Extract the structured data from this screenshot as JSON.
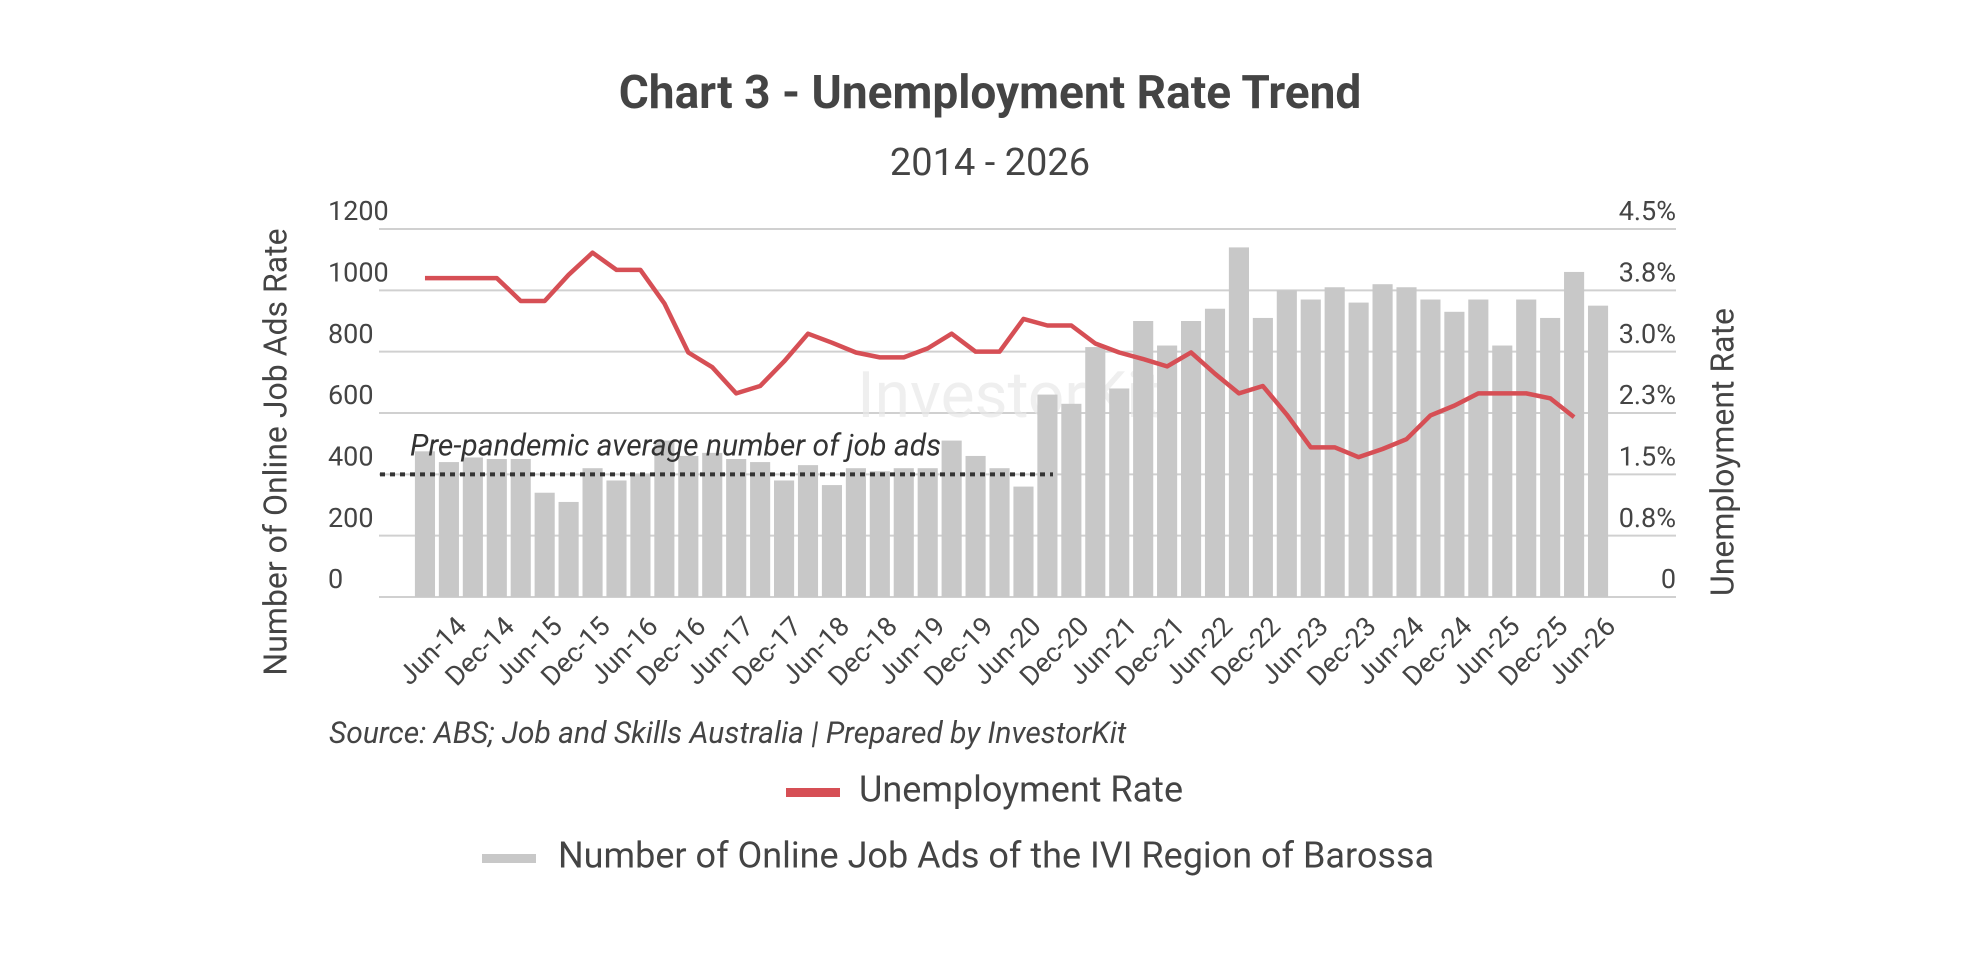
{
  "chart_data": {
    "type": "bar_line",
    "title": "Chart 3 - Unemployment Rate Trend",
    "subtitle": "2014 - 2026",
    "y_label": "Number of Online Job Ads Rate",
    "y2_label": "Unemployment Rate",
    "source": "Source: ABS; Job and Skills Australia | Prepared by InvestorKit",
    "watermark": "InvestorKit",
    "annotation": {
      "text": "Pre-pandemic average number of job ads",
      "value": 400
    },
    "categories": [
      null,
      "Jun-14",
      null,
      "Dec-14",
      null,
      "Jun-15",
      null,
      "Dec-15",
      null,
      "Jun-16",
      null,
      "Dec-16",
      null,
      "Jun-17",
      null,
      "Dec-17",
      null,
      "Jun-18",
      null,
      "Dec-18",
      null,
      "Jun-19",
      null,
      "Dec-19",
      null,
      "Jun-20",
      null,
      "Dec-20",
      null,
      "Jun-21",
      null,
      "Dec-21",
      null,
      "Jun-22",
      null,
      "Dec-22",
      null,
      "Jun-23",
      null,
      "Dec-23",
      null,
      "Jun-24",
      null,
      "Dec-24",
      null,
      "Jun-25",
      null,
      "Dec-25",
      null,
      "Jun-26"
    ],
    "series": [
      {
        "name": "Number of Online Job Ads of the IVI Region of Barossa",
        "type": "bar",
        "color": "#c8c8c8",
        "values": [
          475,
          440,
          455,
          450,
          450,
          340,
          310,
          420,
          380,
          400,
          510,
          460,
          470,
          450,
          440,
          380,
          430,
          365,
          420,
          410,
          420,
          420,
          510,
          460,
          420,
          360,
          660,
          630,
          815,
          680,
          900,
          820,
          900,
          940,
          1140,
          910,
          1000,
          970,
          1010,
          960,
          1020,
          1010,
          970,
          930,
          970,
          820,
          970,
          910,
          1060,
          950
        ]
      },
      {
        "name": "Unemployment Rate",
        "type": "line",
        "axis": "y2",
        "color": "#d64f55",
        "values": [
          3.9,
          3.9,
          3.9,
          3.9,
          3.62,
          3.62,
          3.94,
          4.21,
          4.0,
          4.0,
          3.59,
          2.99,
          2.81,
          2.49,
          2.58,
          2.88,
          3.22,
          3.11,
          2.99,
          2.93,
          2.93,
          3.04,
          3.22,
          3.0,
          3.0,
          3.4,
          3.32,
          3.32,
          3.1,
          2.99,
          2.91,
          2.82,
          2.99,
          2.73,
          2.49,
          2.58,
          2.23,
          1.83,
          1.83,
          1.71,
          1.81,
          1.93,
          2.22,
          2.34,
          2.49,
          2.49,
          2.49,
          2.43,
          2.2,
          null
        ]
      }
    ],
    "ylim": [
      0,
      1200
    ],
    "yticks": [
      0,
      200,
      400,
      600,
      800,
      1000,
      1200
    ],
    "y2lim": [
      0,
      4.5
    ],
    "y2ticks": [
      {
        "value": 0,
        "label": "0"
      },
      {
        "value": 0.75,
        "label": "0.8%"
      },
      {
        "value": 1.5,
        "label": "1.5%"
      },
      {
        "value": 2.25,
        "label": "2.3%"
      },
      {
        "value": 3.0,
        "label": "3.0%"
      },
      {
        "value": 3.75,
        "label": "3.8%"
      },
      {
        "value": 4.5,
        "label": "4.5%"
      }
    ],
    "grid": true
  }
}
